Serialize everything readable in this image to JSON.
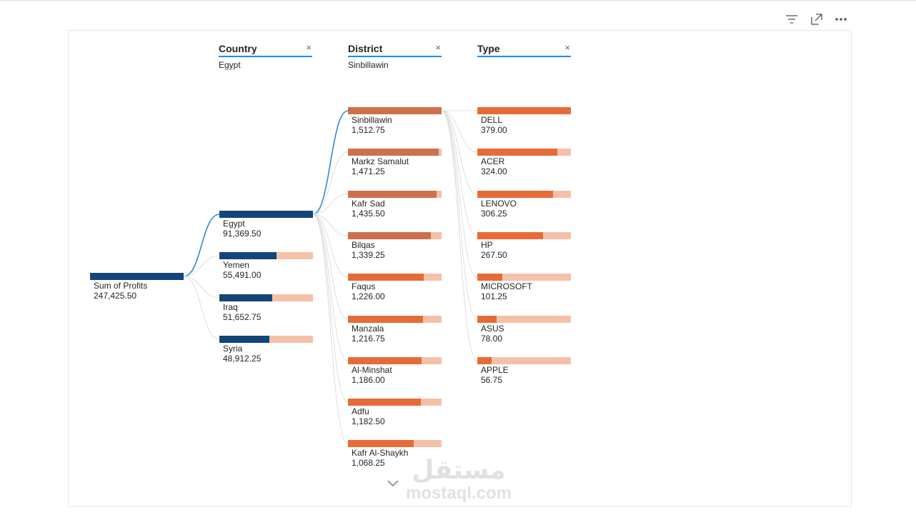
{
  "colors": {
    "level0": "#12467b",
    "level1": "#12467b",
    "level1_track": "#f4c1a8",
    "level2_active": "#cf6f4c",
    "level2": "#e66c37",
    "level2_track": "#f4c1a8",
    "level3": "#e66c37",
    "level3_track": "#f4c1a8",
    "active_link": "#2e8bd3",
    "link": "#dedede",
    "accent": "#118dff"
  },
  "toolbar": {
    "filter_icon": "filter-icon",
    "focus_icon": "focus-mode-icon",
    "more_icon": "more-options-icon"
  },
  "headers": [
    {
      "title": "Country",
      "selected": "Egypt"
    },
    {
      "title": "District",
      "selected": "Sinbillawin"
    },
    {
      "title": "Type",
      "selected": ""
    }
  ],
  "root": {
    "label": "Sum of Profits",
    "value": "247,425.50",
    "fraction": 1.0
  },
  "countries": [
    {
      "label": "Egypt",
      "value": "91,369.50",
      "fraction": 1.0,
      "active": true
    },
    {
      "label": "Yemen",
      "value": "55,491.00",
      "fraction": 0.607
    },
    {
      "label": "Iraq",
      "value": "51,652.75",
      "fraction": 0.565
    },
    {
      "label": "Syria",
      "value": "48,912.25",
      "fraction": 0.535
    }
  ],
  "districts": [
    {
      "label": "Sinbillawin",
      "value": "1,512.75",
      "fraction": 1.0,
      "active": true
    },
    {
      "label": "Markz Samalut",
      "value": "1,471.25",
      "fraction": 0.973
    },
    {
      "label": "Kafr Sad",
      "value": "1,435.50",
      "fraction": 0.949
    },
    {
      "label": "Bilqas",
      "value": "1,339.25",
      "fraction": 0.885
    },
    {
      "label": "Faqus",
      "value": "1,226.00",
      "fraction": 0.81
    },
    {
      "label": "Manzala",
      "value": "1,216.75",
      "fraction": 0.804
    },
    {
      "label": "Al-Minshat",
      "value": "1,186.00",
      "fraction": 0.784
    },
    {
      "label": "Adfu",
      "value": "1,182.50",
      "fraction": 0.782
    },
    {
      "label": "Kafr Al-Shaykh",
      "value": "1,068.25",
      "fraction": 0.706
    }
  ],
  "types": [
    {
      "label": "DELL",
      "value": "379.00",
      "fraction": 1.0
    },
    {
      "label": "ACER",
      "value": "324.00",
      "fraction": 0.855
    },
    {
      "label": "LENOVO",
      "value": "306.25",
      "fraction": 0.808
    },
    {
      "label": "HP",
      "value": "267.50",
      "fraction": 0.706
    },
    {
      "label": "MICROSOFT",
      "value": "101.25",
      "fraction": 0.267
    },
    {
      "label": "ASUS",
      "value": "78.00",
      "fraction": 0.206
    },
    {
      "label": "APPLE",
      "value": "56.75",
      "fraction": 0.15
    }
  ],
  "more_icon_name": "chevron-down-icon",
  "watermark": {
    "arabic": "مستقل",
    "latin": "mostaql.com"
  }
}
